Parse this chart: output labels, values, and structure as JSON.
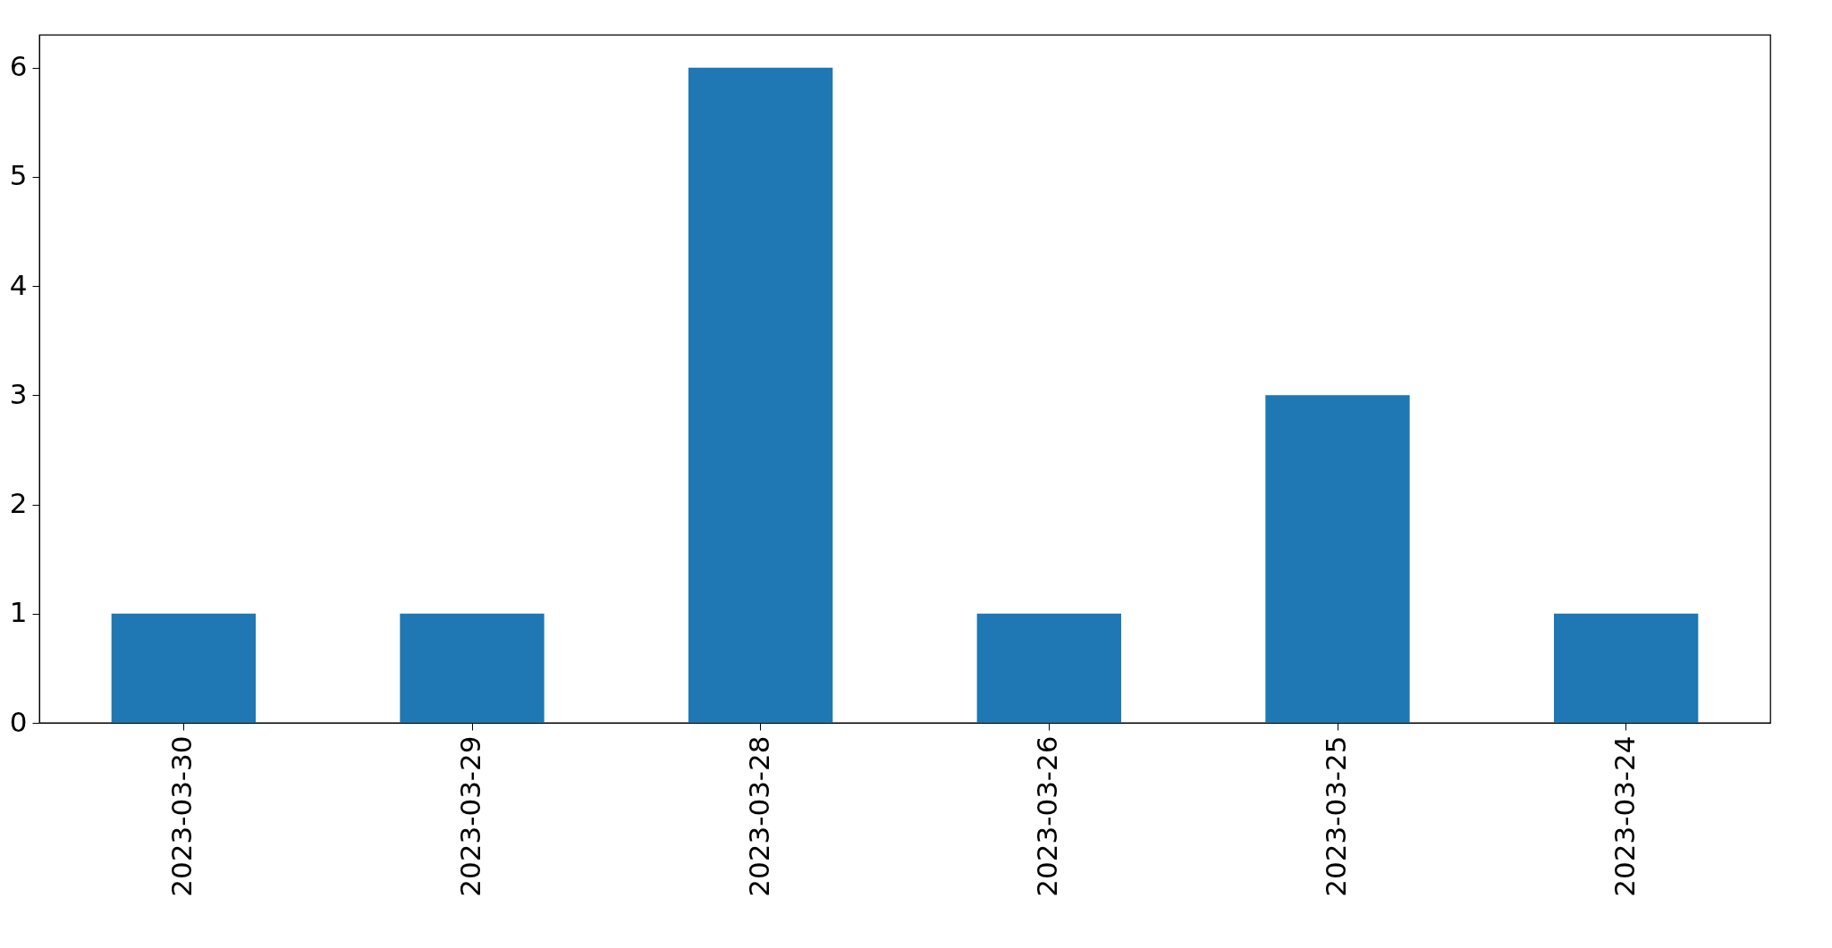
{
  "chart_data": {
    "type": "bar",
    "categories": [
      "2023-03-30",
      "2023-03-29",
      "2023-03-28",
      "2023-03-26",
      "2023-03-25",
      "2023-03-24"
    ],
    "series": [
      {
        "color": "#1f77b4",
        "values": [
          1,
          1,
          6,
          1,
          3,
          1
        ]
      }
    ],
    "ylim": [
      0,
      6.3
    ],
    "yticks": [
      0,
      1,
      2,
      3,
      4,
      5,
      6
    ],
    "grid": false
  }
}
